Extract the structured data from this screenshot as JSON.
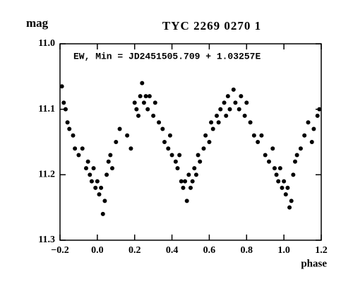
{
  "chart_data": {
    "type": "scatter",
    "title": "TYC 2269 0270 1",
    "ylabel": "mag",
    "xlabel": "phase",
    "annotation": "EW, Min = JD2451505.709 + 1.03257E",
    "color": "#000000",
    "xlim": [
      -0.2,
      1.2
    ],
    "ylim": [
      11.3,
      11.0
    ],
    "invert_y": true,
    "xticks": [
      {
        "value": -0.2,
        "label": "−0.2"
      },
      {
        "value": 0,
        "label": "0.0"
      },
      0.2,
      0.4,
      0.6,
      0.8,
      {
        "value": 1,
        "label": "1.0"
      },
      1.2
    ],
    "yticks": [
      {
        "value": 11,
        "label": "11.0"
      },
      11.1,
      11.2,
      11.3
    ],
    "x": [
      -0.19,
      -0.18,
      -0.17,
      -0.16,
      -0.15,
      -0.13,
      -0.12,
      -0.1,
      -0.08,
      -0.06,
      -0.05,
      -0.04,
      -0.03,
      -0.02,
      -0.01,
      0.0,
      0.01,
      0.02,
      0.03,
      0.04,
      0.05,
      0.06,
      0.07,
      0.08,
      0.1,
      0.12,
      0.16,
      0.18,
      0.2,
      0.21,
      0.22,
      0.23,
      0.24,
      0.25,
      0.26,
      0.27,
      0.28,
      0.3,
      0.31,
      0.33,
      0.35,
      0.36,
      0.38,
      0.39,
      0.4,
      0.42,
      0.43,
      0.44,
      0.45,
      0.46,
      0.47,
      0.48,
      0.49,
      0.5,
      0.51,
      0.52,
      0.53,
      0.54,
      0.55,
      0.57,
      0.58,
      0.6,
      0.61,
      0.62,
      0.64,
      0.65,
      0.66,
      0.68,
      0.69,
      0.7,
      0.71,
      0.73,
      0.74,
      0.76,
      0.77,
      0.79,
      0.8,
      0.82,
      0.84,
      0.86,
      0.88,
      0.9,
      0.92,
      0.94,
      0.95,
      0.96,
      0.97,
      0.98,
      0.99,
      1.0,
      1.01,
      1.02,
      1.03,
      1.04,
      1.05,
      1.06,
      1.07,
      1.09,
      1.11,
      1.13,
      1.15,
      1.16,
      1.18,
      1.19
    ],
    "y": [
      11.065,
      11.09,
      11.1,
      11.12,
      11.13,
      11.14,
      11.16,
      11.17,
      11.16,
      11.19,
      11.18,
      11.2,
      11.21,
      11.19,
      11.22,
      11.21,
      11.23,
      11.22,
      11.26,
      11.24,
      11.2,
      11.18,
      11.17,
      11.19,
      11.15,
      11.13,
      11.14,
      11.16,
      11.09,
      11.1,
      11.11,
      11.08,
      11.06,
      11.09,
      11.08,
      11.1,
      11.08,
      11.11,
      11.09,
      11.12,
      11.13,
      11.15,
      11.16,
      11.14,
      11.17,
      11.18,
      11.19,
      11.17,
      11.21,
      11.22,
      11.21,
      11.24,
      11.2,
      11.22,
      11.21,
      11.19,
      11.2,
      11.17,
      11.18,
      11.16,
      11.14,
      11.15,
      11.12,
      11.13,
      11.11,
      11.12,
      11.1,
      11.09,
      11.11,
      11.08,
      11.1,
      11.07,
      11.09,
      11.1,
      11.08,
      11.11,
      11.09,
      11.12,
      11.14,
      11.15,
      11.14,
      11.17,
      11.18,
      11.16,
      11.19,
      11.2,
      11.21,
      11.19,
      11.22,
      11.21,
      11.23,
      11.22,
      11.25,
      11.24,
      11.2,
      11.18,
      11.17,
      11.16,
      11.14,
      11.12,
      11.15,
      11.13,
      11.11,
      11.1
    ]
  }
}
